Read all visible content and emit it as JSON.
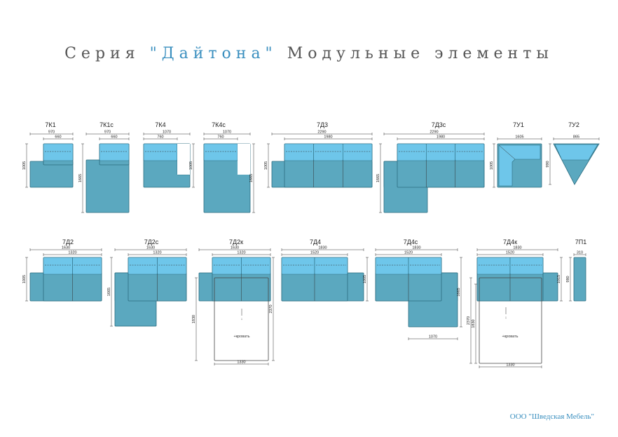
{
  "title": {
    "prefix": "Серия",
    "name": "\"Дайтона\"",
    "suffix": "Модульные элементы"
  },
  "footer": "ООО \"Шведская Мебель\"",
  "bed_label": "кровать",
  "colors": {
    "body": "#5ba8bf",
    "cushion": "#6ec6ea",
    "outline": "#2c6d80",
    "title": "#555555",
    "accent": "#3a8fbf"
  },
  "modules": [
    {
      "id": "m1",
      "label": "7К1",
      "dims": [
        "970",
        "660",
        "1005"
      ]
    },
    {
      "id": "m2",
      "label": "7К1с",
      "dims": [
        "970",
        "660",
        "1665"
      ]
    },
    {
      "id": "m3",
      "label": "7К4",
      "dims": [
        "1070",
        "760",
        "1005"
      ]
    },
    {
      "id": "m4",
      "label": "7К4с",
      "dims": [
        "1070",
        "760",
        "1665"
      ]
    },
    {
      "id": "m5",
      "label": "7Д3",
      "dims": [
        "2290",
        "1980",
        "1005"
      ]
    },
    {
      "id": "m6",
      "label": "7Д3с",
      "dims": [
        "2290",
        "1980",
        "1665"
      ]
    },
    {
      "id": "m7",
      "label": "7У1",
      "dims": [
        "1605",
        "1005"
      ]
    },
    {
      "id": "m8",
      "label": "7У2",
      "dims": [
        "865",
        "990"
      ]
    },
    {
      "id": "m9",
      "label": "7Д2",
      "dims": [
        "1630",
        "1320",
        "1005"
      ]
    },
    {
      "id": "m10",
      "label": "7Д2с",
      "dims": [
        "1630",
        "1320",
        "1665"
      ]
    },
    {
      "id": "m11",
      "label": "7Д2к",
      "dims": [
        "1630",
        "1320",
        "2370",
        "1830",
        "1330"
      ]
    },
    {
      "id": "m12",
      "label": "7Д4",
      "dims": [
        "1830",
        "1520",
        "1005"
      ]
    },
    {
      "id": "m13",
      "label": "7Д4с",
      "dims": [
        "1830",
        "1520",
        "1665",
        "1070"
      ]
    },
    {
      "id": "m14",
      "label": "7Д4к",
      "dims": [
        "1830",
        "1520",
        "1015",
        "2370",
        "1830",
        "1330"
      ]
    },
    {
      "id": "m15",
      "label": "7П1",
      "dims": [
        "310",
        "980"
      ]
    }
  ]
}
